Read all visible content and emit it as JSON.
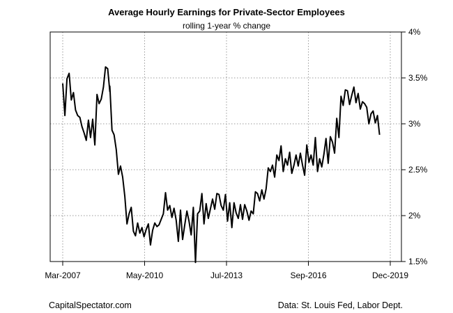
{
  "chart_data": {
    "type": "line",
    "title": "Average Hourly Earnings for Private-Sector Employees",
    "subtitle": "rolling 1-year % change",
    "xlabel": "",
    "ylabel": "",
    "x_ticks": [
      "Mar-2007",
      "May-2010",
      "Jul-2013",
      "Sep-2016",
      "Dec-2019"
    ],
    "y_ticks": [
      "1.5%",
      "2%",
      "2.5%",
      "3%",
      "3.5%",
      "4%"
    ],
    "xlim": [
      "2007-03",
      "2019-12"
    ],
    "ylim": [
      1.5,
      4.0
    ],
    "y_axis_side": "right",
    "grid": true,
    "line_color": "#000000",
    "series": [
      {
        "points": [
          [
            "2007-03",
            3.44
          ],
          [
            "2007-04",
            3.09
          ],
          [
            "2007-05",
            3.49
          ],
          [
            "2007-06",
            3.55
          ],
          [
            "2007-07",
            3.26
          ],
          [
            "2007-08",
            3.34
          ],
          [
            "2007-09",
            3.15
          ],
          [
            "2007-10",
            3.09
          ],
          [
            "2007-11",
            3.07
          ],
          [
            "2007-12",
            2.97
          ],
          [
            "2008-01",
            2.9
          ],
          [
            "2008-02",
            2.82
          ],
          [
            "2008-03",
            3.04
          ],
          [
            "2008-04",
            2.85
          ],
          [
            "2008-05",
            3.05
          ],
          [
            "2008-06",
            2.77
          ],
          [
            "2008-07",
            3.32
          ],
          [
            "2008-08",
            3.22
          ],
          [
            "2008-09",
            3.27
          ],
          [
            "2008-10",
            3.4
          ],
          [
            "2008-11",
            3.62
          ],
          [
            "2008-12",
            3.6
          ],
          [
            "2008-13",
            3.35
          ],
          [
            "2009-01",
            3.41
          ],
          [
            "2009-02",
            2.93
          ],
          [
            "2009-03",
            2.88
          ],
          [
            "2009-04",
            2.72
          ],
          [
            "2009-05",
            2.45
          ],
          [
            "2009-06",
            2.54
          ],
          [
            "2009-07",
            2.42
          ],
          [
            "2009-08",
            2.21
          ],
          [
            "2009-09",
            1.91
          ],
          [
            "2009-10",
            2.02
          ],
          [
            "2009-11",
            2.09
          ],
          [
            "2009-12",
            1.83
          ],
          [
            "2010-01",
            1.78
          ],
          [
            "2010-02",
            1.92
          ],
          [
            "2010-03",
            1.81
          ],
          [
            "2010-04",
            1.87
          ],
          [
            "2010-05",
            1.77
          ],
          [
            "2010-06",
            1.85
          ],
          [
            "2010-07",
            1.91
          ],
          [
            "2010-08",
            1.68
          ],
          [
            "2010-09",
            1.84
          ],
          [
            "2010-10",
            1.92
          ],
          [
            "2010-11",
            1.88
          ],
          [
            "2010-12",
            1.9
          ],
          [
            "2011-01",
            1.96
          ],
          [
            "2011-02",
            2.02
          ],
          [
            "2011-03",
            2.25
          ],
          [
            "2011-04",
            2.06
          ],
          [
            "2011-05",
            2.11
          ],
          [
            "2011-06",
            1.98
          ],
          [
            "2011-07",
            2.08
          ],
          [
            "2011-08",
            1.95
          ],
          [
            "2011-09",
            1.72
          ],
          [
            "2011-10",
            2.06
          ],
          [
            "2011-11",
            1.74
          ],
          [
            "2011-12",
            1.9
          ],
          [
            "2012-01",
            2.05
          ],
          [
            "2012-02",
            1.94
          ],
          [
            "2012-03",
            1.79
          ],
          [
            "2012-04",
            2.09
          ],
          [
            "2012-05",
            1.49
          ],
          [
            "2012-06",
            2.02
          ],
          [
            "2012-07",
            2.05
          ],
          [
            "2012-08",
            2.24
          ],
          [
            "2012-09",
            1.91
          ],
          [
            "2012-10",
            2.13
          ],
          [
            "2012-11",
            1.97
          ],
          [
            "2013-01",
            2.18
          ],
          [
            "2013-02",
            2.07
          ],
          [
            "2013-03",
            2.24
          ],
          [
            "2013-04",
            2.23
          ],
          [
            "2013-05",
            2.11
          ],
          [
            "2013-06",
            2.06
          ],
          [
            "2013-07",
            2.23
          ],
          [
            "2013-08",
            1.94
          ],
          [
            "2013-09",
            2.14
          ],
          [
            "2013-10",
            1.87
          ],
          [
            "2013-11",
            2.14
          ],
          [
            "2013-12",
            2.03
          ],
          [
            "2014-01",
            1.97
          ],
          [
            "2014-02",
            2.12
          ],
          [
            "2014-03",
            1.96
          ],
          [
            "2014-04",
            2.12
          ],
          [
            "2014-05",
            2.05
          ],
          [
            "2014-06",
            1.95
          ],
          [
            "2014-07",
            2.05
          ],
          [
            "2014-08",
            2.02
          ],
          [
            "2014-09",
            2.26
          ],
          [
            "2014-10",
            2.24
          ],
          [
            "2014-11",
            2.16
          ],
          [
            "2014-12",
            2.28
          ],
          [
            "2015-01",
            2.18
          ],
          [
            "2015-02",
            2.29
          ],
          [
            "2015-03",
            2.52
          ],
          [
            "2015-04",
            2.48
          ],
          [
            "2015-05",
            2.55
          ],
          [
            "2015-06",
            2.42
          ],
          [
            "2015-07",
            2.66
          ],
          [
            "2015-08",
            2.6
          ],
          [
            "2015-09",
            2.76
          ],
          [
            "2015-10",
            2.48
          ],
          [
            "2015-11",
            2.62
          ],
          [
            "2015-12",
            2.55
          ],
          [
            "2016-01",
            2.69
          ],
          [
            "2016-02",
            2.46
          ],
          [
            "2016-03",
            2.55
          ],
          [
            "2016-04",
            2.66
          ],
          [
            "2016-05",
            2.54
          ],
          [
            "2016-06",
            2.68
          ],
          [
            "2016-07",
            2.55
          ],
          [
            "2016-08",
            2.44
          ],
          [
            "2016-09",
            2.77
          ],
          [
            "2016-10",
            2.58
          ],
          [
            "2016-11",
            2.66
          ],
          [
            "2016-12",
            2.55
          ],
          [
            "2017-01",
            2.85
          ],
          [
            "2017-02",
            2.48
          ],
          [
            "2017-03",
            2.62
          ],
          [
            "2017-04",
            2.53
          ],
          [
            "2017-05",
            2.67
          ],
          [
            "2017-06",
            2.84
          ],
          [
            "2017-07",
            2.57
          ],
          [
            "2017-08",
            2.86
          ],
          [
            "2017-09",
            2.8
          ],
          [
            "2017-10",
            2.68
          ],
          [
            "2017-11",
            3.06
          ],
          [
            "2017-12",
            2.85
          ],
          [
            "2018-01",
            3.3
          ],
          [
            "2018-02",
            3.2
          ],
          [
            "2018-03",
            3.37
          ],
          [
            "2018-04",
            3.36
          ],
          [
            "2018-05",
            3.21
          ],
          [
            "2018-06",
            3.31
          ],
          [
            "2018-07",
            3.4
          ],
          [
            "2018-08",
            3.23
          ],
          [
            "2018-09",
            3.33
          ],
          [
            "2018-10",
            3.16
          ],
          [
            "2018-11",
            3.24
          ],
          [
            "2018-12",
            3.22
          ],
          [
            "2019-01",
            3.18
          ],
          [
            "2019-02",
            3.0
          ],
          [
            "2019-03",
            3.11
          ],
          [
            "2019-04",
            3.14
          ],
          [
            "2019-05",
            3.01
          ],
          [
            "2019-06",
            3.09
          ],
          [
            "2019-07",
            2.88
          ]
        ]
      }
    ]
  },
  "footer": {
    "left": "CapitalSpectator.com",
    "right": "Data: St. Louis Fed, Labor Dept."
  }
}
